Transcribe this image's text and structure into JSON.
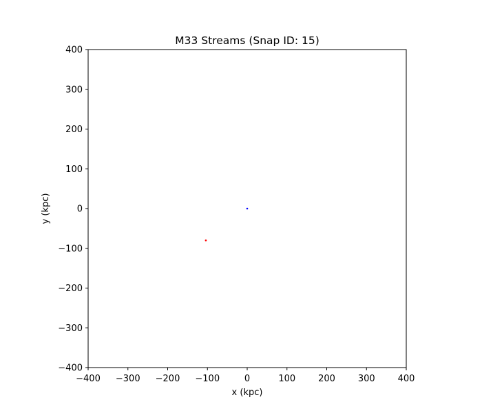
{
  "chart_data": {
    "type": "scatter",
    "title": "M33 Streams (Snap ID: 15)",
    "xlabel": "x (kpc)",
    "ylabel": "y (kpc)",
    "xlim": [
      -400,
      400
    ],
    "ylim": [
      -400,
      400
    ],
    "xticks": [
      -400,
      -300,
      -200,
      -100,
      0,
      100,
      200,
      300,
      400
    ],
    "yticks": [
      -400,
      -300,
      -200,
      -100,
      0,
      100,
      200,
      300,
      400
    ],
    "xtick_labels": [
      "−400",
      "−300",
      "−200",
      "−100",
      "0",
      "100",
      "200",
      "300",
      "400"
    ],
    "ytick_labels": [
      "−400",
      "−300",
      "−200",
      "−100",
      "0",
      "100",
      "200",
      "300",
      "400"
    ],
    "grid": false,
    "series": [
      {
        "name": "blue-point",
        "color": "#0000ff",
        "points": [
          {
            "x": 0,
            "y": 0
          }
        ]
      },
      {
        "name": "red-point",
        "color": "#ff0000",
        "points": [
          {
            "x": -104,
            "y": -80
          }
        ]
      }
    ]
  }
}
